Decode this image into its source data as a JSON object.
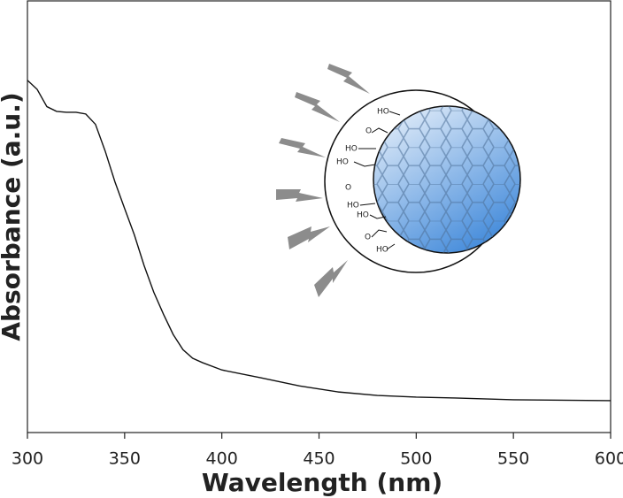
{
  "chart_data": {
    "type": "line",
    "x_label": "Wavelength (nm)",
    "y_label": "Absorbance (a.u.)",
    "x": [
      300,
      305,
      310,
      315,
      320,
      325,
      330,
      335,
      340,
      345,
      350,
      355,
      360,
      365,
      370,
      375,
      380,
      385,
      390,
      400,
      420,
      440,
      460,
      480,
      500,
      520,
      550,
      600
    ],
    "series": [
      {
        "color": "#111111",
        "values": [
          0.816,
          0.795,
          0.755,
          0.744,
          0.742,
          0.742,
          0.738,
          0.714,
          0.652,
          0.581,
          0.519,
          0.458,
          0.387,
          0.325,
          0.274,
          0.227,
          0.192,
          0.172,
          0.162,
          0.145,
          0.127,
          0.108,
          0.094,
          0.086,
          0.082,
          0.08,
          0.076,
          0.074
        ]
      }
    ],
    "xlim": [
      300,
      600
    ],
    "xticks": [
      300,
      350,
      400,
      450,
      500,
      550,
      600
    ],
    "ylim": [
      0,
      1
    ],
    "illustration_labels": [
      "HO",
      "HO",
      "HO",
      "HO",
      "HO",
      "HO",
      "O",
      "O",
      "O"
    ]
  }
}
